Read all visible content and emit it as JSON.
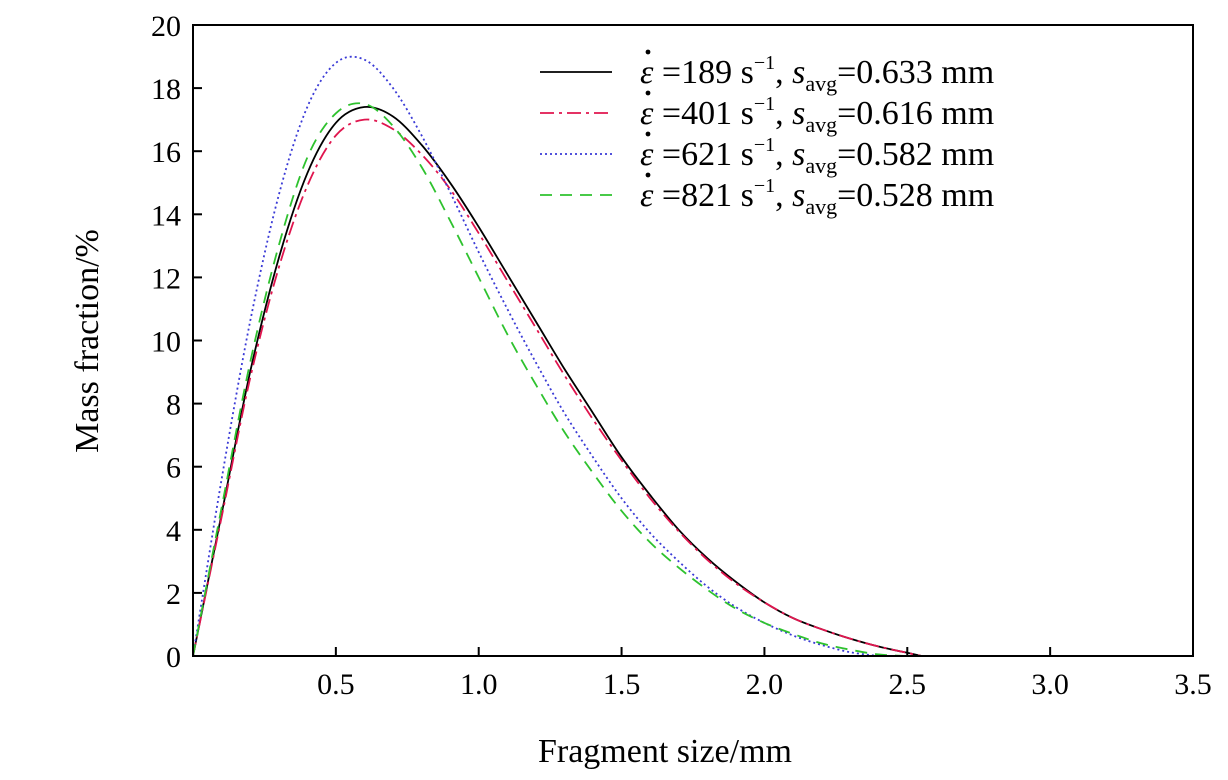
{
  "chart_data": {
    "type": "line",
    "title": "",
    "xlabel": "Fragment size/mm",
    "ylabel": "Mass fraction/%",
    "xlim": [
      0,
      3.5
    ],
    "ylim": [
      0,
      20
    ],
    "x_ticks": [
      0.5,
      1.0,
      1.5,
      2.0,
      2.5,
      3.0,
      3.5
    ],
    "x_tick_labels": [
      "0.5",
      "1.0",
      "1.5",
      "2.0",
      "2.5",
      "3.0",
      "3.5"
    ],
    "y_ticks": [
      0,
      2,
      4,
      6,
      8,
      10,
      12,
      14,
      16,
      18,
      20
    ],
    "y_tick_labels": [
      "0",
      "2",
      "4",
      "6",
      "8",
      "10",
      "12",
      "14",
      "16",
      "18",
      "20"
    ],
    "grid": false,
    "legend_position": "top-right",
    "series": [
      {
        "name": "ε̇ =189 s−1, savg=0.633 mm",
        "rate": "189",
        "savg": "0.633",
        "color": "#000000",
        "style": "solid",
        "x": [
          0,
          0.1,
          0.2,
          0.3,
          0.4,
          0.5,
          0.6,
          0.7,
          0.8,
          0.9,
          1.0,
          1.1,
          1.2,
          1.3,
          1.4,
          1.5,
          1.6,
          1.7,
          1.8,
          1.9,
          2.0,
          2.1,
          2.2,
          2.3,
          2.4,
          2.5,
          2.55
        ],
        "y": [
          0,
          4.5,
          9.0,
          12.6,
          15.3,
          16.9,
          17.4,
          17.1,
          16.2,
          15.0,
          13.6,
          12.1,
          10.6,
          9.1,
          7.7,
          6.3,
          5.1,
          4.0,
          3.1,
          2.35,
          1.7,
          1.2,
          0.85,
          0.55,
          0.3,
          0.1,
          0
        ]
      },
      {
        "name": "ε̇ =401 s−1, savg=0.616 mm",
        "rate": "401",
        "savg": "0.616",
        "color": "#e0154e",
        "style": "dashdot",
        "x": [
          0,
          0.1,
          0.2,
          0.3,
          0.4,
          0.5,
          0.6,
          0.7,
          0.8,
          0.9,
          1.0,
          1.1,
          1.2,
          1.3,
          1.4,
          1.5,
          1.6,
          1.7,
          1.8,
          1.9,
          2.0,
          2.1,
          2.2,
          2.3,
          2.4,
          2.5,
          2.55
        ],
        "y": [
          0,
          4.4,
          8.8,
          12.3,
          14.9,
          16.5,
          17.0,
          16.7,
          15.9,
          14.8,
          13.4,
          11.9,
          10.4,
          8.9,
          7.5,
          6.2,
          5.0,
          3.95,
          3.05,
          2.3,
          1.7,
          1.2,
          0.85,
          0.55,
          0.3,
          0.1,
          0
        ]
      },
      {
        "name": "ε̇ =621 s−1, savg=0.582 mm",
        "rate": "621",
        "savg": "0.582",
        "color": "#3a3ad6",
        "style": "dotted",
        "x": [
          0,
          0.1,
          0.2,
          0.3,
          0.4,
          0.5,
          0.6,
          0.7,
          0.8,
          0.9,
          1.0,
          1.1,
          1.2,
          1.3,
          1.4,
          1.5,
          1.6,
          1.7,
          1.8,
          1.9,
          2.0,
          2.1,
          2.2,
          2.3,
          2.4
        ],
        "y": [
          0,
          5.6,
          10.6,
          14.6,
          17.4,
          18.8,
          18.9,
          18.0,
          16.5,
          14.7,
          12.8,
          11.0,
          9.3,
          7.7,
          6.3,
          5.0,
          3.9,
          3.0,
          2.2,
          1.55,
          1.05,
          0.65,
          0.35,
          0.12,
          0
        ]
      },
      {
        "name": "ε̇ =821 s−1, savg=0.528 mm",
        "rate": "821",
        "savg": "0.528",
        "color": "#2ec22e",
        "style": "dashed",
        "x": [
          0,
          0.1,
          0.2,
          0.3,
          0.4,
          0.5,
          0.6,
          0.7,
          0.8,
          0.9,
          1.0,
          1.1,
          1.2,
          1.3,
          1.4,
          1.5,
          1.6,
          1.7,
          1.8,
          1.9,
          2.0,
          2.1,
          2.2,
          2.3,
          2.4,
          2.5
        ],
        "y": [
          0,
          4.7,
          9.3,
          13.0,
          15.8,
          17.2,
          17.5,
          16.8,
          15.5,
          13.8,
          12.0,
          10.2,
          8.6,
          7.1,
          5.8,
          4.6,
          3.6,
          2.8,
          2.1,
          1.5,
          1.05,
          0.7,
          0.4,
          0.2,
          0.05,
          0
        ]
      }
    ]
  }
}
